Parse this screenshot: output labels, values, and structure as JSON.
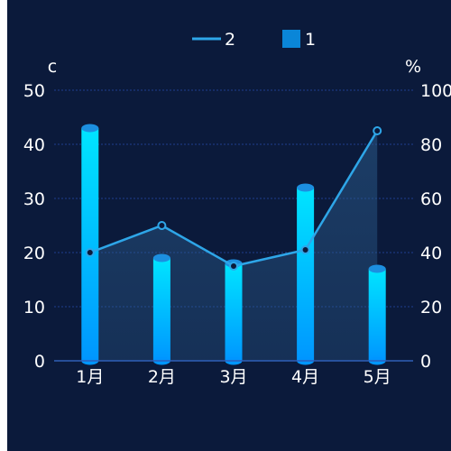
{
  "chart_data": {
    "type": "bar",
    "categories": [
      "1月",
      "2月",
      "3月",
      "4月",
      "5月"
    ],
    "series": [
      {
        "name": "1",
        "type": "bar",
        "axis": "left",
        "values": [
          43,
          19,
          18,
          32,
          17
        ]
      },
      {
        "name": "2",
        "type": "line",
        "axis": "right",
        "values": [
          40,
          50,
          35,
          41,
          85
        ]
      }
    ],
    "y_left": {
      "label": "c",
      "ylim": [
        0,
        50
      ],
      "ticks": [
        0,
        10,
        20,
        30,
        40,
        50
      ]
    },
    "y_right": {
      "label": "%",
      "ylim": [
        0,
        100
      ],
      "ticks": [
        0,
        20,
        40,
        60,
        80,
        100
      ]
    },
    "grid": true,
    "legend_position": "top-center",
    "colors": {
      "background": "#0b1a3b",
      "bar_top": "#00e5ff",
      "bar_bottom": "#0091ff",
      "bar_cap": "#1c8fe0",
      "line": "#2ea6e8",
      "area": "#2a5a8a",
      "grid": "#1f3f8f",
      "text": "#ffffff"
    }
  }
}
